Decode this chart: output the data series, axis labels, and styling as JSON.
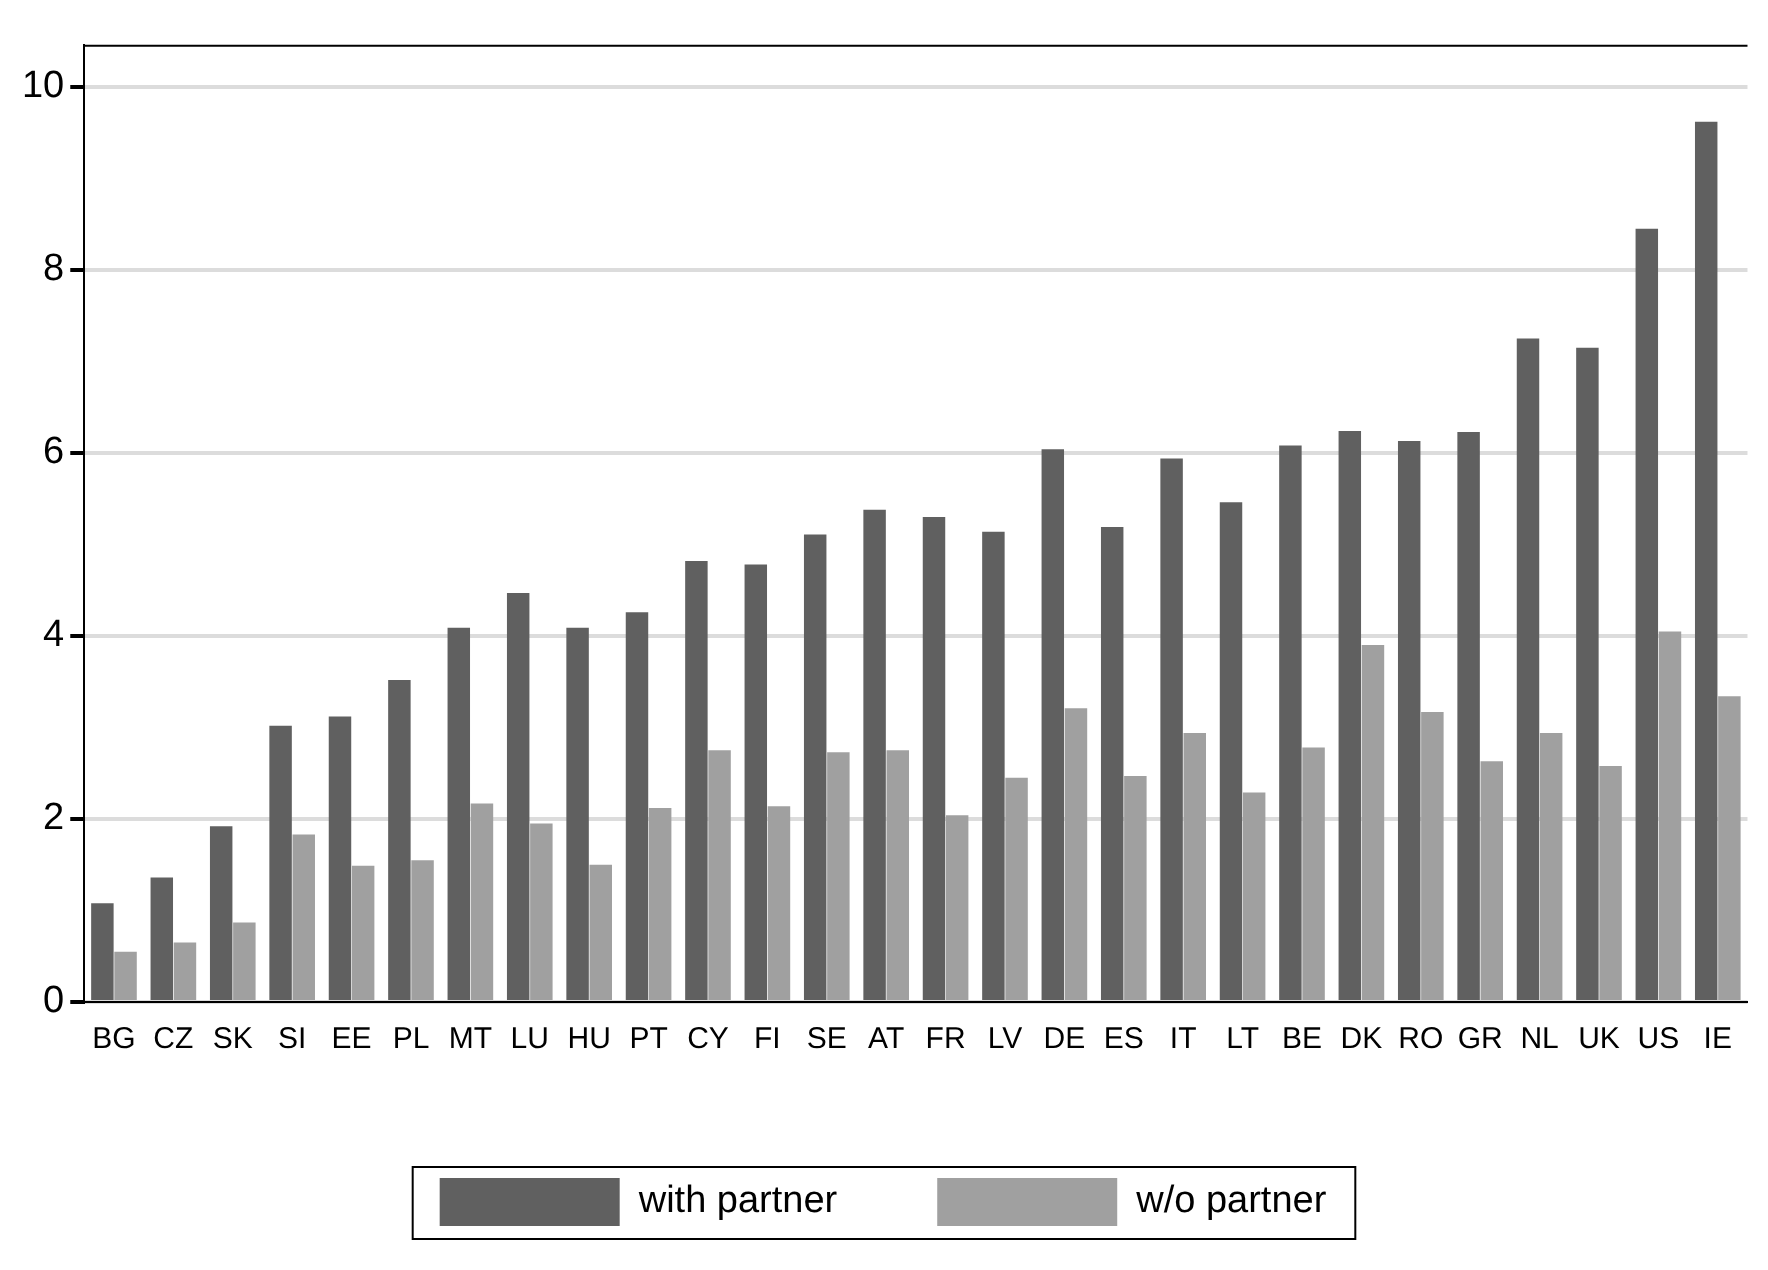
{
  "chart_data": {
    "type": "bar",
    "categories": [
      "BG",
      "CZ",
      "SK",
      "SI",
      "EE",
      "PL",
      "MT",
      "LU",
      "HU",
      "PT",
      "CY",
      "FI",
      "SE",
      "AT",
      "FR",
      "LV",
      "DE",
      "ES",
      "IT",
      "LT",
      "BE",
      "DK",
      "RO",
      "GR",
      "NL",
      "UK",
      "US",
      "IE"
    ],
    "series": [
      {
        "name": "with partner",
        "color": "#606060",
        "values": [
          1.08,
          1.36,
          1.92,
          3.02,
          3.12,
          3.52,
          4.09,
          4.47,
          4.09,
          4.26,
          4.82,
          4.78,
          5.11,
          5.38,
          5.3,
          5.14,
          6.04,
          5.19,
          5.94,
          5.46,
          6.08,
          6.24,
          6.13,
          6.23,
          7.25,
          7.15,
          8.45,
          9.62
        ]
      },
      {
        "name": "w/o partner",
        "color": "#a0a0a0",
        "values": [
          0.55,
          0.65,
          0.87,
          1.83,
          1.49,
          1.55,
          2.17,
          1.95,
          1.5,
          2.12,
          2.75,
          2.14,
          2.73,
          2.75,
          2.04,
          2.45,
          3.21,
          2.47,
          2.94,
          2.29,
          2.78,
          3.9,
          3.17,
          2.63,
          2.94,
          2.58,
          4.05,
          3.34
        ]
      }
    ],
    "ylim": [
      0,
      10.46
    ],
    "yticks": [
      0,
      2,
      4,
      6,
      8,
      10
    ],
    "grid": "y",
    "legend": "bottom"
  }
}
